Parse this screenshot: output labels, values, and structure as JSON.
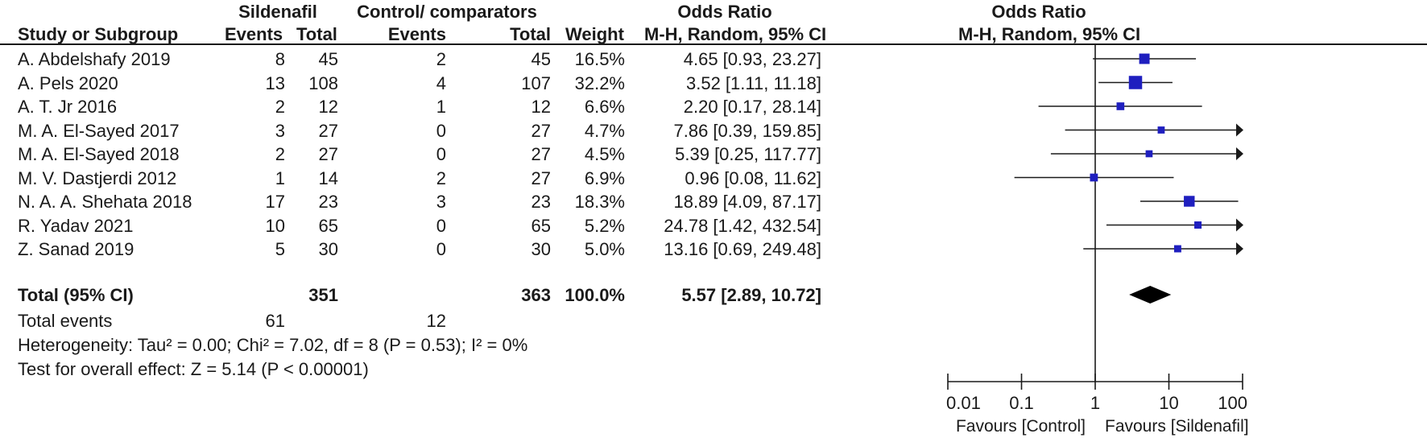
{
  "headers": {
    "group1": "Sildenafil",
    "group2": "Control/ comparators",
    "or_text_title": "Odds Ratio",
    "or_plot_title": "Odds Ratio",
    "study": "Study or Subgroup",
    "events1": "Events",
    "total1": "Total",
    "events2": "Events",
    "total2": "Total",
    "weight": "Weight",
    "method_text": "M-H, Random, 95% CI",
    "method_plot": "M-H, Random, 95% CI"
  },
  "studies": [
    {
      "name": "A. Abdelshafy 2019",
      "e1": "8",
      "t1": "45",
      "e2": "2",
      "t2": "45",
      "weight": "16.5%",
      "ci": "4.65 [0.93, 23.27]"
    },
    {
      "name": "A. Pels 2020",
      "e1": "13",
      "t1": "108",
      "e2": "4",
      "t2": "107",
      "weight": "32.2%",
      "ci": "3.52 [1.11, 11.18]"
    },
    {
      "name": "A. T. Jr 2016",
      "e1": "2",
      "t1": "12",
      "e2": "1",
      "t2": "12",
      "weight": "6.6%",
      "ci": "2.20 [0.17, 28.14]"
    },
    {
      "name": "M. A. El-Sayed 2017",
      "e1": "3",
      "t1": "27",
      "e2": "0",
      "t2": "27",
      "weight": "4.7%",
      "ci": "7.86 [0.39, 159.85]"
    },
    {
      "name": "M. A. El-Sayed 2018",
      "e1": "2",
      "t1": "27",
      "e2": "0",
      "t2": "27",
      "weight": "4.5%",
      "ci": "5.39 [0.25, 117.77]"
    },
    {
      "name": "M. V. Dastjerdi 2012",
      "e1": "1",
      "t1": "14",
      "e2": "2",
      "t2": "27",
      "weight": "6.9%",
      "ci": "0.96 [0.08, 11.62]"
    },
    {
      "name": "N. A. A. Shehata 2018",
      "e1": "17",
      "t1": "23",
      "e2": "3",
      "t2": "23",
      "weight": "18.3%",
      "ci": "18.89 [4.09, 87.17]"
    },
    {
      "name": "R. Yadav 2021",
      "e1": "10",
      "t1": "65",
      "e2": "0",
      "t2": "65",
      "weight": "5.2%",
      "ci": "24.78 [1.42, 432.54]"
    },
    {
      "name": "Z. Sanad 2019",
      "e1": "5",
      "t1": "30",
      "e2": "0",
      "t2": "30",
      "weight": "5.0%",
      "ci": "13.16 [0.69, 249.48]"
    }
  ],
  "total": {
    "label": "Total (95% CI)",
    "t1": "351",
    "t2": "363",
    "weight": "100.0%",
    "ci": "5.57 [2.89, 10.72]"
  },
  "events": {
    "label": "Total events",
    "e1": "61",
    "e2": "12"
  },
  "heterogeneity": "Heterogeneity: Tau² = 0.00; Chi² = 7.02, df = 8 (P = 0.53); I² = 0%",
  "overall_effect": "Test for overall effect: Z = 5.14 (P < 0.00001)",
  "favours_left": "Favours [Control]",
  "favours_right": "Favours [Sildenafil]",
  "colors": {
    "marker": "#1f1fbf",
    "diamond": "#000000",
    "text": "#1a1a1a"
  },
  "chart_data": {
    "type": "scatter",
    "scale": "log",
    "xlim": [
      0.01,
      100
    ],
    "ticks": [
      "0.01",
      "0.1",
      "1",
      "10",
      "100"
    ],
    "tick_values": [
      0.01,
      0.1,
      1,
      10,
      100
    ],
    "series": [
      {
        "values": [
          {
            "x": 4.65,
            "low": 0.93,
            "high": 23.27,
            "weight": 16.5
          },
          {
            "x": 3.52,
            "low": 1.11,
            "high": 11.18,
            "weight": 32.2
          },
          {
            "x": 2.2,
            "low": 0.17,
            "high": 28.14,
            "weight": 6.6
          },
          {
            "x": 7.86,
            "low": 0.39,
            "high": 159.85,
            "weight": 4.7
          },
          {
            "x": 5.39,
            "low": 0.25,
            "high": 117.77,
            "weight": 4.5
          },
          {
            "x": 0.96,
            "low": 0.08,
            "high": 11.62,
            "weight": 6.9
          },
          {
            "x": 18.89,
            "low": 4.09,
            "high": 87.17,
            "weight": 18.3
          },
          {
            "x": 24.78,
            "low": 1.42,
            "high": 432.54,
            "weight": 5.2
          },
          {
            "x": 13.16,
            "low": 0.69,
            "high": 249.48,
            "weight": 5.0
          }
        ]
      }
    ],
    "pooled": {
      "x": 5.57,
      "low": 2.89,
      "high": 10.72
    }
  }
}
